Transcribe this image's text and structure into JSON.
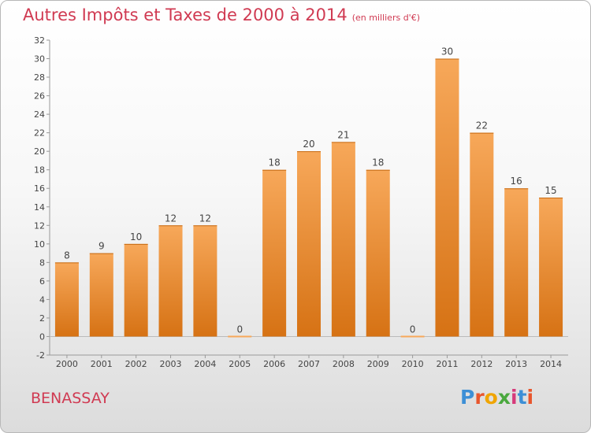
{
  "title": "Autres Impôts et Taxes de 2000 à 2014",
  "unit_note": "(en milliers d'€)",
  "location": "BENASSAY",
  "logo": {
    "text": "Proxiti",
    "letter_colors": [
      "#3d8fd6",
      "#e8562d",
      "#f0a500",
      "#4aa83e",
      "#d63a7a",
      "#3d8fd6",
      "#e8562d"
    ]
  },
  "colors": {
    "bar_top": "#f7a85a",
    "bar_bottom": "#d67214",
    "title": "#d03a52"
  },
  "chart_data": {
    "type": "bar",
    "categories": [
      "2000",
      "2001",
      "2002",
      "2003",
      "2004",
      "2005",
      "2006",
      "2007",
      "2008",
      "2009",
      "2010",
      "2011",
      "2012",
      "2013",
      "2014"
    ],
    "values": [
      8,
      9,
      10,
      12,
      12,
      0,
      18,
      20,
      21,
      18,
      0,
      30,
      22,
      16,
      15
    ],
    "yticks": [
      -2,
      0,
      2,
      4,
      6,
      8,
      10,
      12,
      14,
      16,
      18,
      20,
      22,
      24,
      26,
      28,
      30,
      32
    ],
    "ylim": [
      -2,
      32
    ],
    "grid": false
  }
}
